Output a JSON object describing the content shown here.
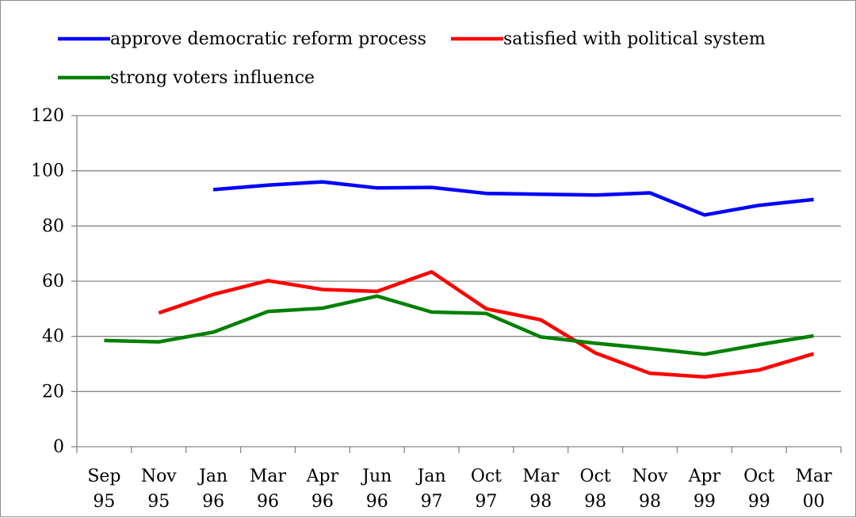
{
  "chart_data": {
    "type": "line",
    "categories": [
      [
        "Sep",
        "95"
      ],
      [
        "Nov",
        "95"
      ],
      [
        "Jan",
        "96"
      ],
      [
        "Mar",
        "96"
      ],
      [
        "Apr",
        "96"
      ],
      [
        "Jun",
        "96"
      ],
      [
        "Jan",
        "97"
      ],
      [
        "Oct",
        "97"
      ],
      [
        "Mar",
        "98"
      ],
      [
        "Oct",
        "98"
      ],
      [
        "Nov",
        "98"
      ],
      [
        "Apr",
        "99"
      ],
      [
        "Oct",
        "99"
      ],
      [
        "Mar",
        "00"
      ]
    ],
    "series": [
      {
        "name": "approve democratic reform process",
        "color": "#0000ff",
        "values": [
          null,
          null,
          93.2,
          94.8,
          96.0,
          93.8,
          94.0,
          91.8,
          91.5,
          91.2,
          92.0,
          84.0,
          87.5,
          89.6
        ]
      },
      {
        "name": "satisfied with political system",
        "color": "#ff0000",
        "values": [
          null,
          48.5,
          55.2,
          60.2,
          57.0,
          56.3,
          63.4,
          50.0,
          46.0,
          34.0,
          26.6,
          25.3,
          27.8,
          33.7
        ]
      },
      {
        "name": "strong voters influence",
        "color": "#008000",
        "values": [
          38.5,
          38.0,
          41.5,
          49.0,
          50.2,
          54.6,
          48.8,
          48.3,
          39.8,
          37.5,
          35.6,
          33.5,
          37.0,
          40.2
        ]
      }
    ],
    "ylim": [
      0,
      120
    ],
    "yticks": [
      0,
      20,
      40,
      60,
      80,
      100,
      120
    ],
    "grid": true,
    "legend_position": "top"
  }
}
